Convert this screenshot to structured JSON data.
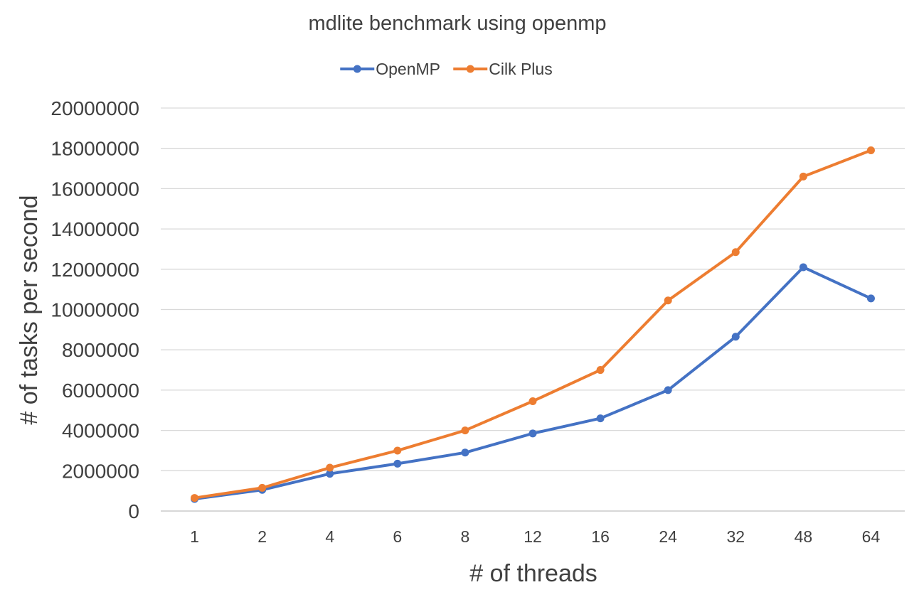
{
  "chart_data": {
    "type": "line",
    "title": "mdlite benchmark using openmp",
    "xlabel": "# of threads",
    "ylabel": "# of tasks per second",
    "categories": [
      "1",
      "2",
      "4",
      "6",
      "8",
      "12",
      "16",
      "24",
      "32",
      "48",
      "64"
    ],
    "ylim": [
      0,
      20000000
    ],
    "yticks": [
      "0",
      "2000000",
      "4000000",
      "6000000",
      "8000000",
      "10000000",
      "12000000",
      "14000000",
      "16000000",
      "18000000",
      "20000000"
    ],
    "grid": "horizontal",
    "legend_position": "top",
    "series": [
      {
        "name": "OpenMP",
        "color": "#4472C4",
        "values": [
          600000,
          1050000,
          1850000,
          2350000,
          2900000,
          3850000,
          4600000,
          6000000,
          8650000,
          12100000,
          10550000
        ]
      },
      {
        "name": "Cilk Plus",
        "color": "#ED7D31",
        "values": [
          650000,
          1150000,
          2150000,
          3000000,
          4000000,
          5450000,
          7000000,
          10450000,
          12850000,
          16600000,
          17900000
        ]
      }
    ]
  }
}
